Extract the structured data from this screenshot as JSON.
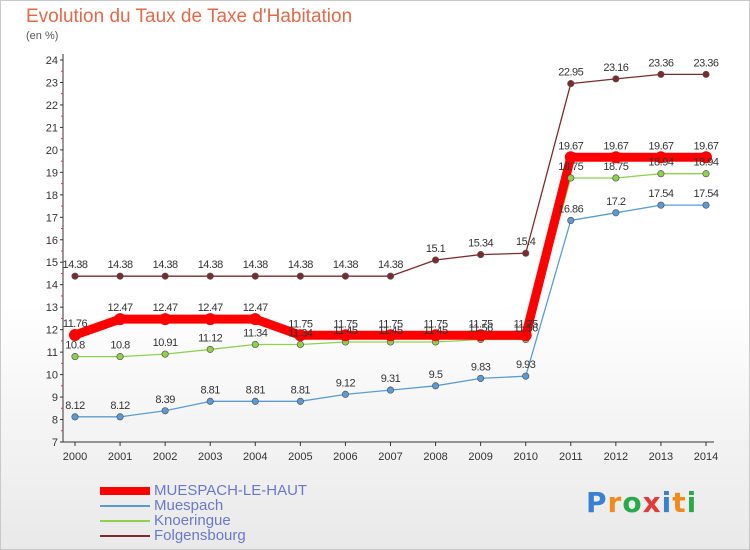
{
  "chart_data": {
    "type": "line",
    "title": "Evolution du Taux de Taxe d'Habitation",
    "unit_label": "(en %)",
    "x": [
      "2000",
      "2001",
      "2002",
      "2003",
      "2004",
      "2005",
      "2006",
      "2007",
      "2008",
      "2009",
      "2010",
      "2011",
      "2012",
      "2013",
      "2014"
    ],
    "ylim": [
      7,
      24
    ],
    "yticks": [
      "7",
      "8",
      "9",
      "10",
      "11",
      "12",
      "13",
      "14",
      "15",
      "16",
      "17",
      "18",
      "19",
      "20",
      "21",
      "22",
      "23",
      "24"
    ],
    "grid": false,
    "legend_position": "bottom-left",
    "series": [
      {
        "name": "MUESPACH-LE-HAUT",
        "color": "#ff0000",
        "values": [
          11.76,
          12.47,
          12.47,
          12.47,
          12.47,
          11.75,
          11.75,
          11.75,
          11.75,
          11.75,
          11.75,
          19.67,
          19.67,
          19.67,
          19.67
        ],
        "labels": [
          "11.76",
          "12.47",
          "12.47",
          "12.47",
          "12.47",
          "11.75",
          "11.75",
          "11.75",
          "11.75",
          "11.75",
          "11.75",
          "19.67",
          "19.67",
          "19.67",
          "19.67"
        ]
      },
      {
        "name": "Muespach",
        "color": "#5b9bd5",
        "values": [
          8.12,
          8.12,
          8.39,
          8.81,
          8.81,
          8.81,
          9.12,
          9.31,
          9.5,
          9.83,
          9.93,
          16.86,
          17.2,
          17.54,
          17.54
        ],
        "labels": [
          "8.12",
          "8.12",
          "8.39",
          "8.81",
          "8.81",
          "8.81",
          "9.12",
          "9.31",
          "9.5",
          "9.83",
          "9.93",
          "16.86",
          "17.2",
          "17.54",
          "17.54"
        ]
      },
      {
        "name": "Knoeringue",
        "color": "#8fd14f",
        "values": [
          10.8,
          10.8,
          10.91,
          11.12,
          11.34,
          11.34,
          11.45,
          11.45,
          11.45,
          11.56,
          11.56,
          18.75,
          18.75,
          18.94,
          18.94
        ],
        "labels": [
          "10.8",
          "10.8",
          "10.91",
          "11.12",
          "11.34",
          "11.34",
          "11.45",
          "11.45",
          "11.45",
          "11.56",
          "11.56",
          "18.75",
          "18.75",
          "18.94",
          "18.94"
        ]
      },
      {
        "name": "Folgensbourg",
        "color": "#7b2b2b",
        "values": [
          14.38,
          14.38,
          14.38,
          14.38,
          14.38,
          14.38,
          14.38,
          14.38,
          15.1,
          15.34,
          15.4,
          22.95,
          23.16,
          23.36,
          23.36
        ],
        "labels": [
          "14.38",
          "14.38",
          "14.38",
          "14.38",
          "14.38",
          "14.38",
          "14.38",
          "14.38",
          "15.1",
          "15.34",
          "15.4",
          "22.95",
          "23.16",
          "23.36",
          "23.36"
        ]
      }
    ]
  },
  "logo": {
    "letters": [
      "P",
      "r",
      "o",
      "x",
      "i",
      "t",
      "i"
    ],
    "colors": [
      "#3a7fd0",
      "#f08a1c",
      "#2aa84a",
      "#e23b3b",
      "#3a7fd0",
      "#f08a1c",
      "#2aa84a"
    ]
  }
}
